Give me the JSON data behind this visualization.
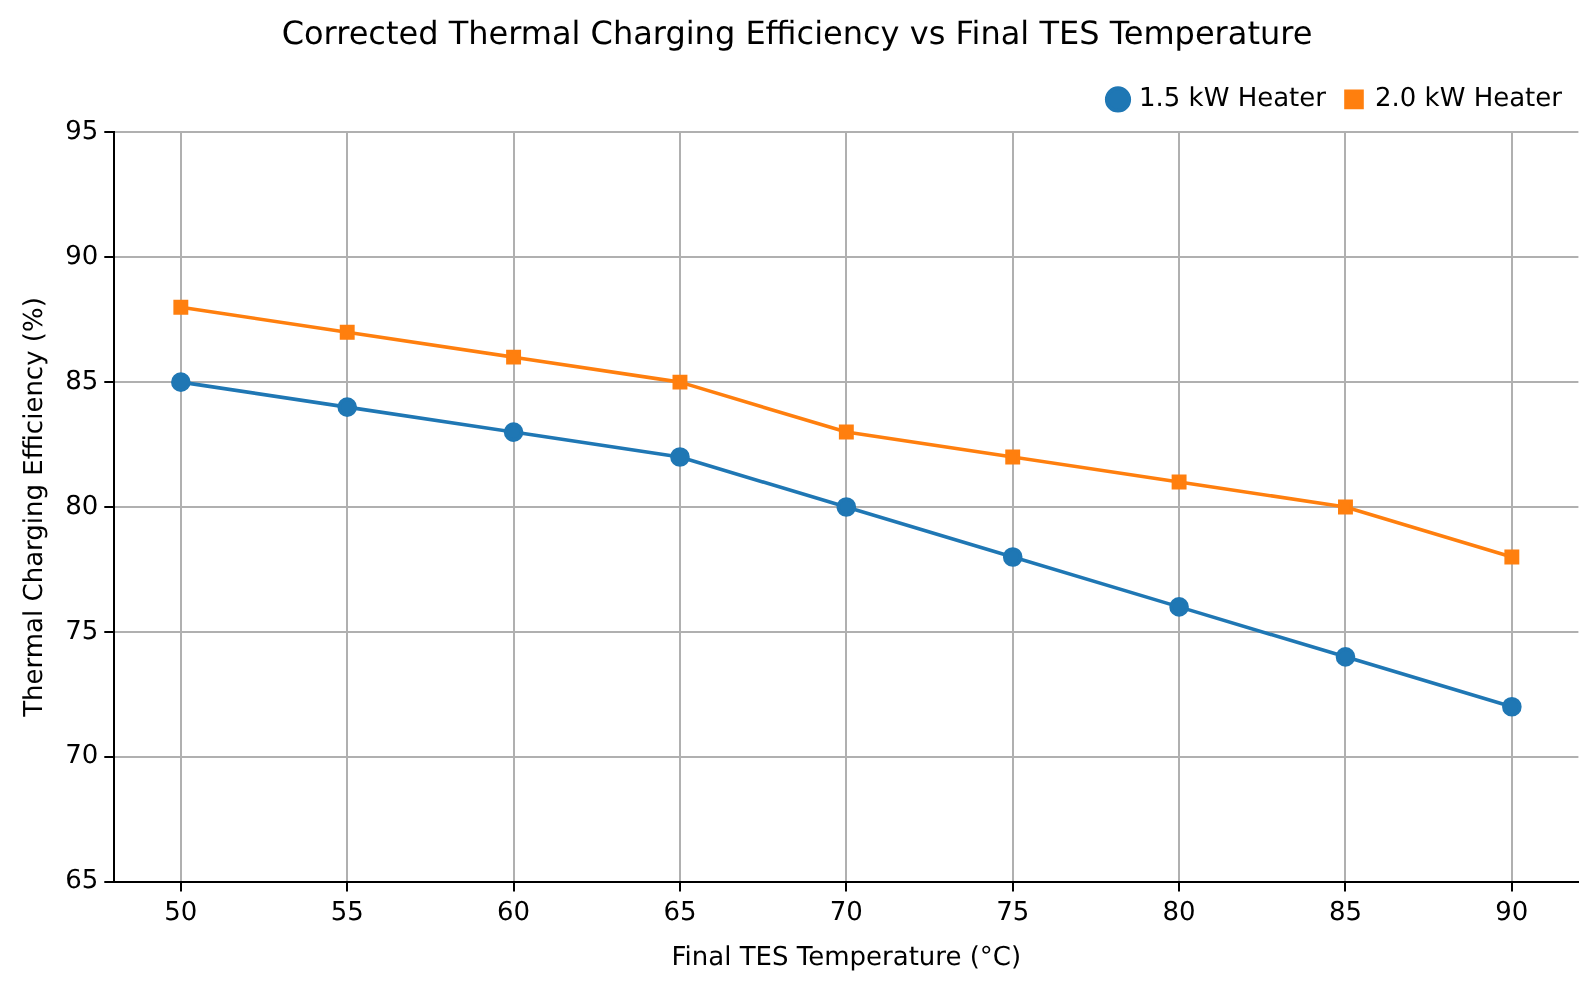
{
  "chart_data": {
    "type": "line",
    "title": "Corrected Thermal Charging Efficiency vs Final TES Temperature",
    "xlabel": "Final TES Temperature (°C)",
    "ylabel": "Thermal Charging Efficiency (%)",
    "x": [
      50,
      55,
      60,
      65,
      70,
      75,
      80,
      85,
      90
    ],
    "series": [
      {
        "name": "1.5 kW Heater",
        "color": "#1f77b4",
        "marker": "circle",
        "values": [
          85,
          84,
          83,
          82,
          80,
          78,
          76,
          74,
          72
        ]
      },
      {
        "name": "2.0 kW Heater",
        "color": "#ff7f0e",
        "marker": "square",
        "values": [
          88,
          87,
          86,
          85,
          83,
          82,
          81,
          80,
          78
        ]
      }
    ],
    "xlim": [
      48,
      92
    ],
    "xticks": [
      50,
      55,
      60,
      65,
      70,
      75,
      80,
      85,
      90
    ],
    "ylim": [
      65,
      95
    ],
    "yticks": [
      65,
      70,
      75,
      80,
      85,
      90,
      95
    ],
    "grid": true,
    "legend": "top right",
    "line_style": "solid"
  }
}
